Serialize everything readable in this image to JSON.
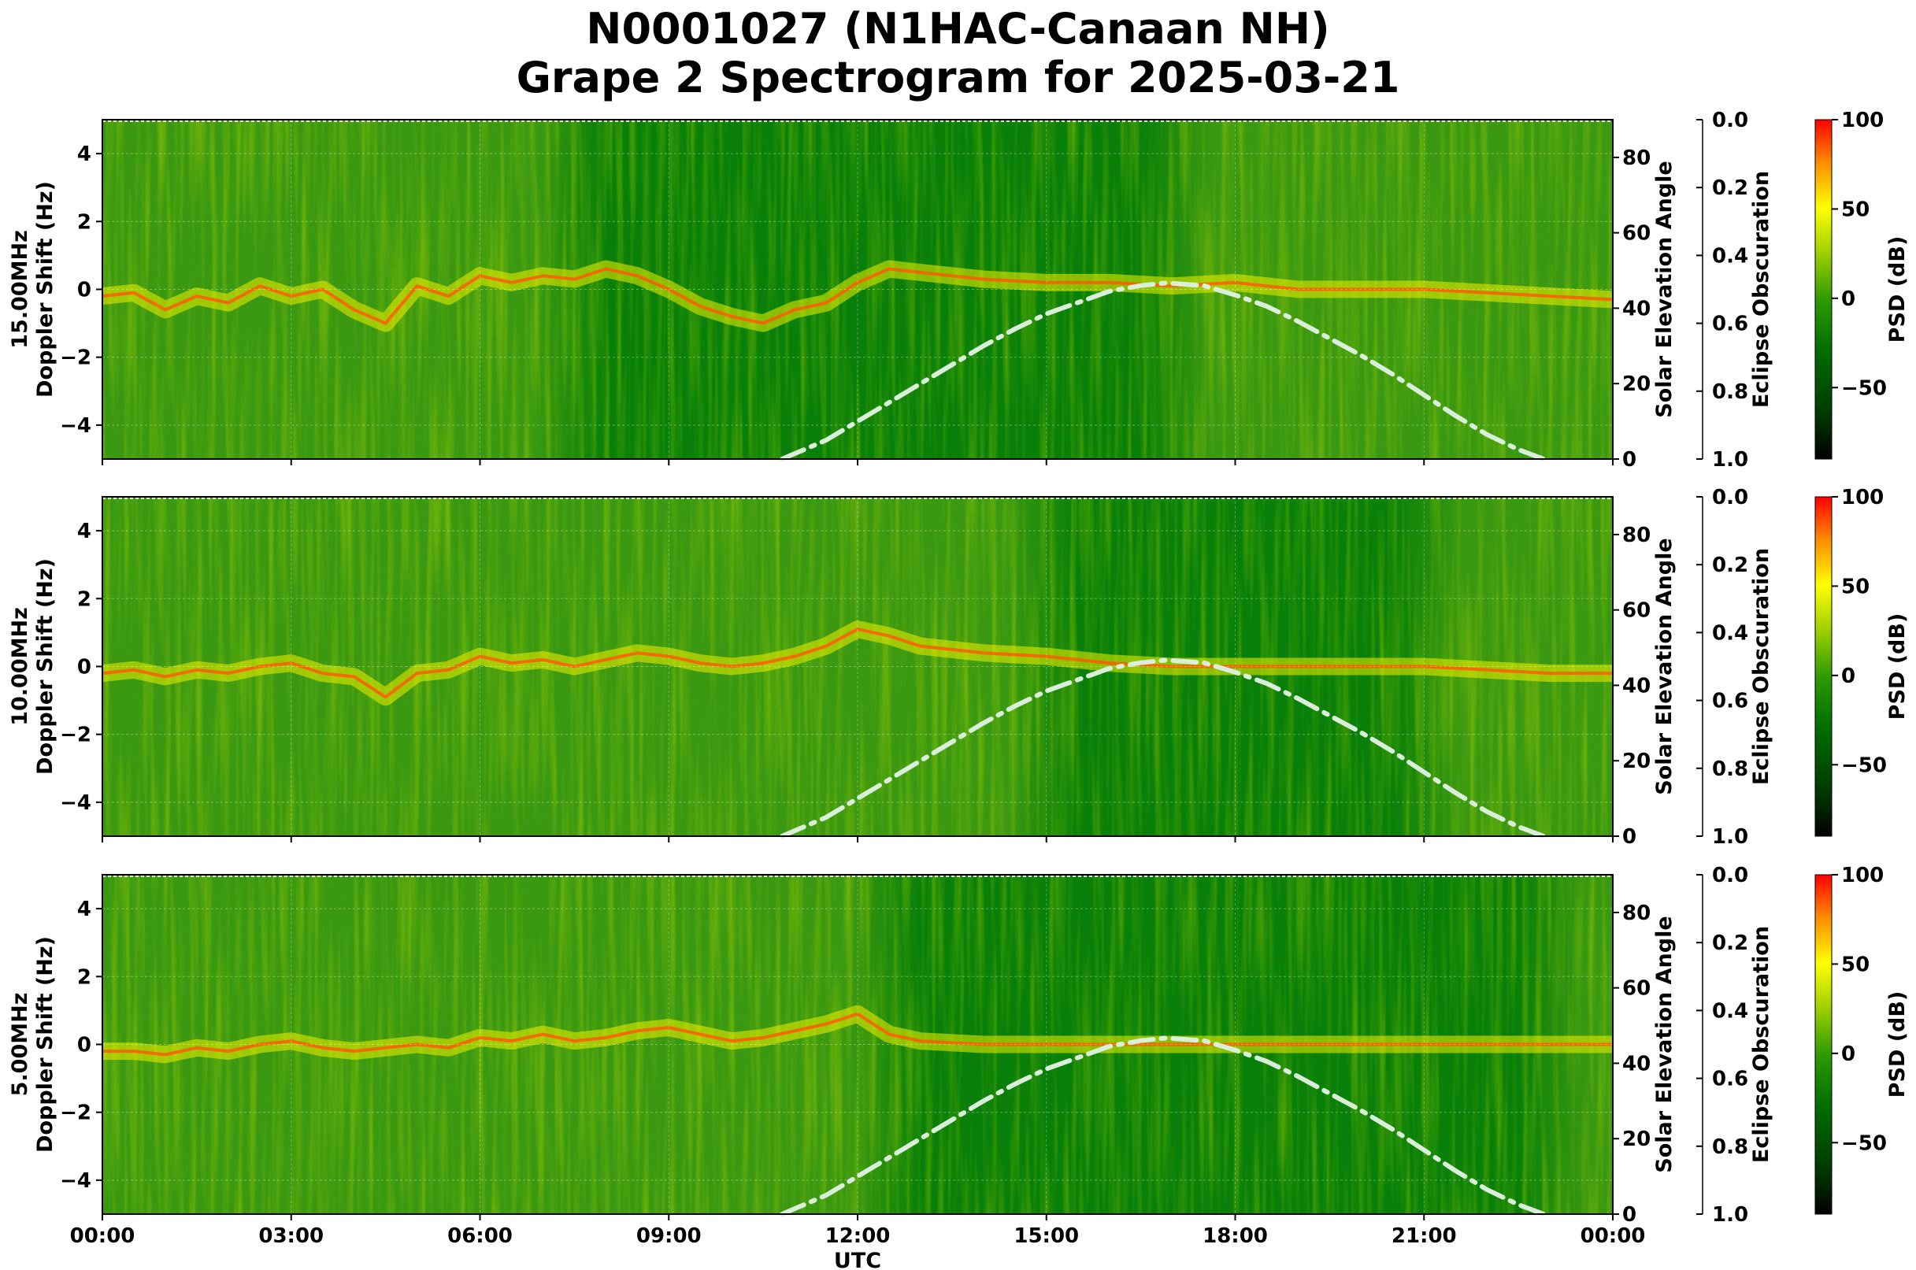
{
  "figure": {
    "title_line1": "N0001027 (N1HAC-Canaan NH)",
    "title_line2": "Grape 2 Spectrogram for 2025-03-21"
  },
  "chart_data": {
    "type": "heatmap",
    "xlabel": "UTC",
    "x_ticks": [
      "00:00",
      "03:00",
      "06:00",
      "09:00",
      "12:00",
      "15:00",
      "18:00",
      "21:00",
      "00:00"
    ],
    "xlim_hours": [
      0,
      24
    ],
    "ylabel_suffix": "Doppler Shift (Hz)",
    "ylim": [
      -5,
      5
    ],
    "y_ticks": [
      4,
      2,
      0,
      -2,
      -4
    ],
    "solar_axis": {
      "label": "Solar Elevation Angle",
      "ylim": [
        0,
        90
      ],
      "ticks": [
        0,
        20,
        40,
        60,
        80
      ]
    },
    "eclipse_axis": {
      "label": "Eclipse Obscuration",
      "ylim": [
        1.0,
        0.0
      ],
      "ticks": [
        "0.0",
        "0.2",
        "0.4",
        "0.6",
        "0.8",
        "1.0"
      ]
    },
    "colorbar": {
      "label": "PSD (dB)",
      "range": [
        -90,
        100
      ],
      "ticks": [
        "100",
        "50",
        "0",
        "−50"
      ],
      "colormap": [
        "#000000",
        "#006400",
        "#008000",
        "#7fbf00",
        "#ffff00",
        "#ff0000"
      ]
    },
    "solar_elevation_curve": {
      "hours": [
        10.8,
        11.5,
        12.0,
        12.5,
        13.0,
        13.5,
        14.0,
        14.5,
        15.0,
        15.5,
        16.0,
        16.5,
        16.9,
        17.5,
        18.0,
        18.5,
        19.0,
        19.5,
        20.0,
        20.5,
        21.0,
        21.5,
        22.0,
        22.5,
        22.9
      ],
      "degrees": [
        0,
        5,
        10,
        15,
        20,
        25,
        30,
        34.5,
        38.5,
        41.5,
        44.5,
        46,
        46.7,
        46,
        43.5,
        40.5,
        36.5,
        32,
        27.5,
        22.5,
        17,
        11.5,
        6.5,
        2.5,
        0
      ],
      "style": "dash-dot",
      "color": "#d9efd9"
    },
    "panels": [
      {
        "name": "15.00MHz",
        "trace_hours": [
          0,
          0.5,
          1.0,
          1.5,
          2.0,
          2.5,
          3.0,
          3.5,
          4.0,
          4.5,
          5.0,
          5.5,
          6.0,
          6.5,
          7.0,
          7.5,
          8.0,
          8.5,
          9.0,
          9.5,
          10.0,
          10.5,
          11.0,
          11.5,
          12.0,
          12.5,
          13.0,
          14.0,
          15.0,
          16.0,
          17.0,
          18.0,
          19.0,
          20.0,
          21.0,
          22.0,
          23.0,
          24.0
        ],
        "trace_hz": [
          -0.2,
          -0.1,
          -0.6,
          -0.2,
          -0.4,
          0.1,
          -0.2,
          0.0,
          -0.6,
          -1.0,
          0.1,
          -0.2,
          0.4,
          0.2,
          0.4,
          0.3,
          0.6,
          0.4,
          0.0,
          -0.5,
          -0.8,
          -1.0,
          -0.6,
          -0.4,
          0.2,
          0.6,
          0.5,
          0.3,
          0.2,
          0.2,
          0.1,
          0.2,
          0.0,
          0.0,
          0.0,
          -0.1,
          -0.2,
          -0.3
        ],
        "quiet_hours": [
          8.0,
          16.5
        ]
      },
      {
        "name": "10.00MHz",
        "trace_hours": [
          0,
          0.5,
          1.0,
          1.5,
          2.0,
          2.5,
          3.0,
          3.5,
          4.0,
          4.5,
          5.0,
          5.5,
          6.0,
          6.5,
          7.0,
          7.5,
          8.0,
          8.5,
          9.0,
          9.5,
          10.0,
          10.5,
          11.0,
          11.5,
          12.0,
          12.5,
          13.0,
          14.0,
          15.0,
          16.0,
          17.0,
          18.0,
          19.0,
          20.0,
          21.0,
          22.0,
          23.0,
          24.0
        ],
        "trace_hz": [
          -0.2,
          -0.1,
          -0.3,
          -0.1,
          -0.2,
          0.0,
          0.1,
          -0.2,
          -0.3,
          -0.9,
          -0.2,
          -0.1,
          0.3,
          0.1,
          0.2,
          0.0,
          0.2,
          0.4,
          0.3,
          0.1,
          0.0,
          0.1,
          0.3,
          0.6,
          1.1,
          0.9,
          0.6,
          0.4,
          0.3,
          0.1,
          0.0,
          0.0,
          0.0,
          0.0,
          0.0,
          -0.1,
          -0.2,
          -0.2
        ],
        "quiet_hours": [
          15.5,
          20.5
        ]
      },
      {
        "name": "5.00MHz",
        "trace_hours": [
          0,
          0.5,
          1.0,
          1.5,
          2.0,
          2.5,
          3.0,
          3.5,
          4.0,
          4.5,
          5.0,
          5.5,
          6.0,
          6.5,
          7.0,
          7.5,
          8.0,
          8.5,
          9.0,
          9.5,
          10.0,
          10.5,
          11.0,
          11.5,
          12.0,
          12.5,
          13.0,
          14.0,
          15.0,
          16.0,
          17.0,
          18.0,
          19.0,
          20.0,
          21.0,
          22.0,
          23.0,
          24.0
        ],
        "trace_hz": [
          -0.2,
          -0.2,
          -0.3,
          -0.1,
          -0.2,
          0.0,
          0.1,
          -0.1,
          -0.2,
          -0.1,
          0.0,
          -0.1,
          0.2,
          0.1,
          0.3,
          0.1,
          0.2,
          0.4,
          0.5,
          0.3,
          0.1,
          0.2,
          0.4,
          0.6,
          0.9,
          0.3,
          0.1,
          0.0,
          0.0,
          0.0,
          0.0,
          0.0,
          0.0,
          0.0,
          0.0,
          0.0,
          0.0,
          0.0
        ],
        "quiet_hours": [
          13.0,
          22.5
        ]
      }
    ]
  }
}
